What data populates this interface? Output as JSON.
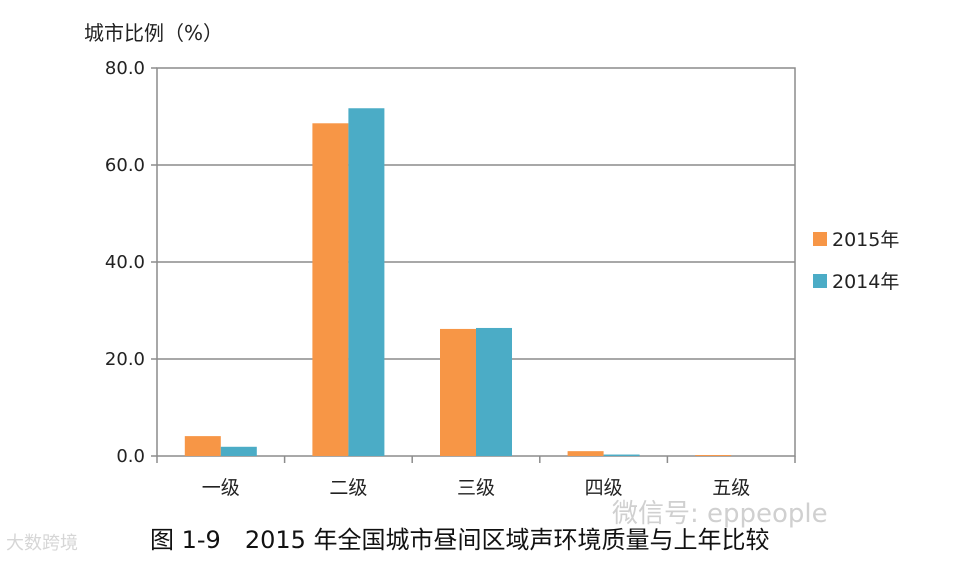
{
  "chart_data": {
    "type": "bar",
    "ylabel": "城市比例（%）",
    "categories": [
      "一级",
      "二级",
      "三级",
      "四级",
      "五级"
    ],
    "series": [
      {
        "name": "2015年",
        "color": "#F79646",
        "values": [
          4.1,
          68.6,
          26.2,
          1.0,
          0.2
        ]
      },
      {
        "name": "2014年",
        "color": "#4BACC6",
        "values": [
          1.9,
          71.7,
          26.4,
          0.3,
          0.0
        ]
      }
    ],
    "ylim": [
      0,
      80
    ],
    "yticks": [
      "0.0",
      "20.0",
      "40.0",
      "60.0",
      "80.0"
    ],
    "grid": true,
    "legend": "right"
  },
  "caption": "图 1-9　2015 年全国城市昼间区域声环境质量与上年比较",
  "watermarks": {
    "right": "微信号: eppeople",
    "left": "大数跨境"
  }
}
